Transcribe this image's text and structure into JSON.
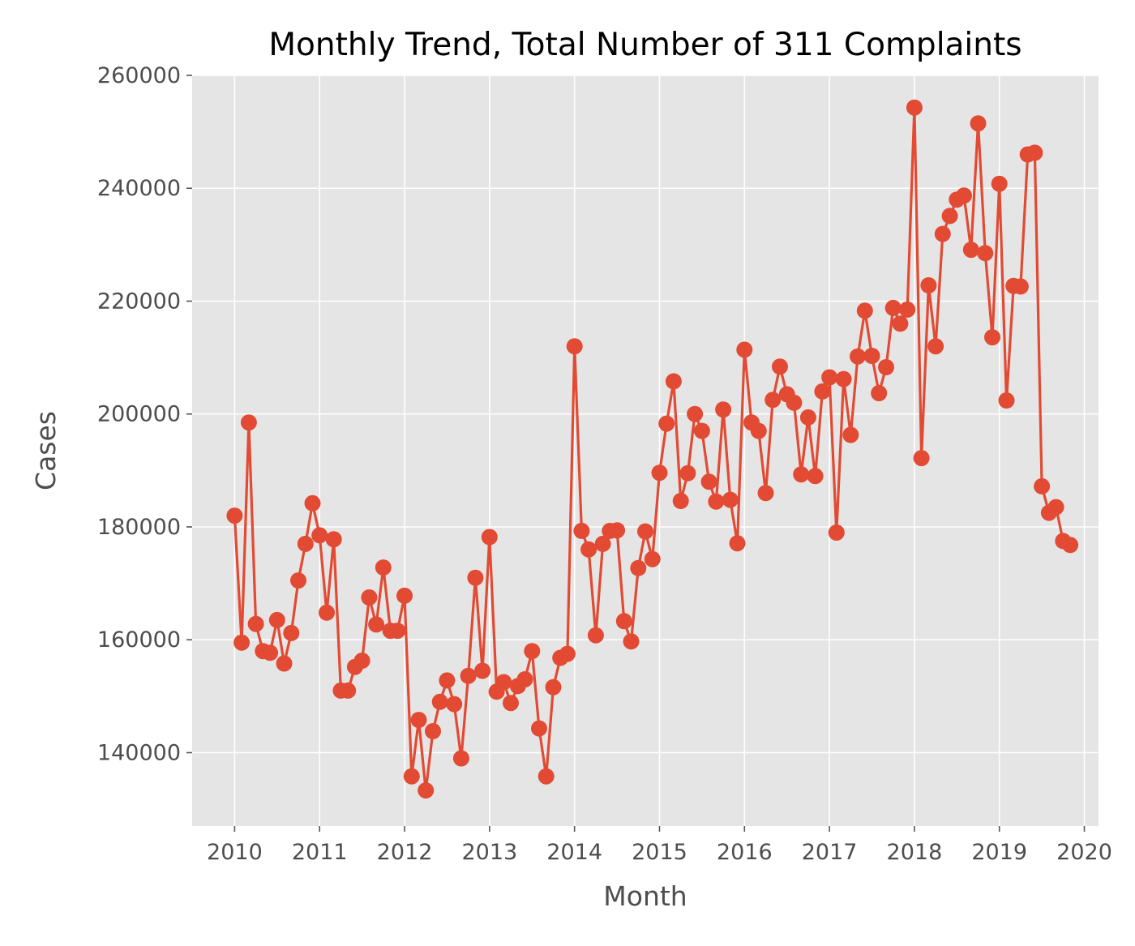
{
  "chart_data": {
    "type": "line",
    "title": "Monthly Trend, Total Number of 311 Complaints",
    "xlabel": "Month",
    "ylabel": "Cases",
    "x_ticks": [
      "2010",
      "2011",
      "2012",
      "2013",
      "2014",
      "2015",
      "2016",
      "2017",
      "2018",
      "2019",
      "2020"
    ],
    "y_ticks": [
      "140000",
      "160000",
      "180000",
      "200000",
      "220000",
      "240000",
      "260000"
    ],
    "xlim": [
      "2009-07",
      "2020-03"
    ],
    "ylim": [
      127000,
      260000
    ],
    "grid": true,
    "marker": "circle",
    "colors": {
      "line": "#e24a33",
      "plot_bg": "#e5e5e5",
      "grid": "#ffffff"
    },
    "x_start": "2010-01",
    "series": [
      {
        "values": [
          182000,
          159500,
          198500,
          162800,
          158000,
          157700,
          163500,
          155800,
          161200,
          170500,
          177000,
          184200,
          178500,
          164800,
          177800,
          151000,
          151000,
          155200,
          156300,
          167500,
          162700,
          172800,
          161600,
          161600,
          167800,
          135800,
          145800,
          133300,
          143800,
          149000,
          152800,
          148600,
          139000,
          153600,
          171000,
          154500,
          178200,
          150800,
          152500,
          148800,
          151800,
          153000,
          158000,
          144300,
          135800,
          151600,
          156800,
          157500,
          212000,
          179300,
          176000,
          160800,
          177000,
          179300,
          179400,
          163300,
          159700,
          172700,
          179200,
          174300,
          189600,
          198300,
          205800,
          184600,
          189500,
          200000,
          197000,
          188000,
          184500,
          200800,
          184800,
          177100,
          211400,
          198500,
          197000,
          186000,
          202500,
          208400,
          203500,
          202000,
          189300,
          199400,
          189000,
          204000,
          206500,
          179000,
          206200,
          196300,
          210200,
          218300,
          210300,
          203700,
          208300,
          218800,
          216000,
          218500,
          254300,
          192200,
          222800,
          212000,
          231900,
          235100,
          238000,
          238700,
          229100,
          251500,
          228500,
          213600,
          240800,
          202400,
          222700,
          222600,
          246000,
          246300,
          187200,
          182500,
          183500,
          177500,
          176800
        ]
      }
    ]
  }
}
